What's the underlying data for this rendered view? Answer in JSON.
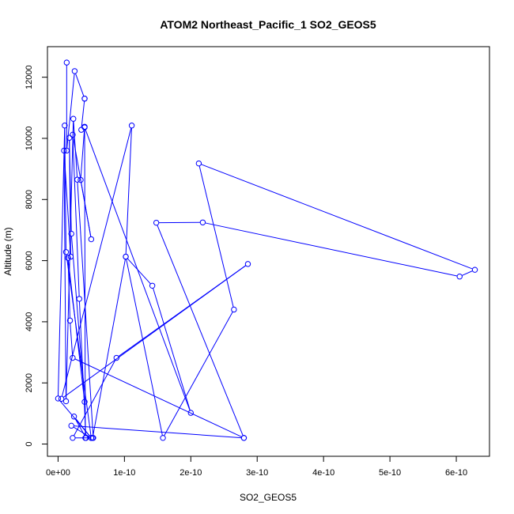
{
  "chart_data": {
    "type": "line",
    "title": "ATOM2 Northeast_Pacific_1 SO2_GEOS5",
    "xlabel": "SO2_GEOS5",
    "ylabel": "Altitude (m)",
    "xlim": [
      -1.6e-11,
      6.5e-10
    ],
    "ylim": [
      -400,
      13000
    ],
    "xticks": [
      0,
      1e-10,
      2e-10,
      3e-10,
      4e-10,
      5e-10,
      6e-10
    ],
    "xtick_labels": [
      "0e+00",
      "1e-10",
      "2e-10",
      "3e-10",
      "4e-10",
      "5e-10",
      "6e-10"
    ],
    "yticks": [
      0,
      2000,
      4000,
      6000,
      8000,
      10000,
      12000
    ],
    "ytick_labels": [
      "0",
      "2000",
      "4000",
      "6000",
      "8000",
      "10000",
      "12000"
    ],
    "grid": false,
    "legend": "none",
    "series_color": "#0000ff",
    "marker": "open-circle",
    "x": [
      1.3e-11,
      1.3e-11,
      2.5e-11,
      4e-11,
      4e-11,
      3.5e-11,
      4e-11,
      3.4e-11,
      5e-11,
      2.2e-11,
      3.2e-11,
      4.2e-11,
      2.4e-11,
      5e-11,
      1.2e-11,
      1e-11,
      0.0,
      5e-11,
      2e-11,
      2.8e-10,
      2.2e-11,
      1.8e-11,
      1.5e-11,
      4e-11,
      2e-11,
      1.7e-11,
      1.9e-11,
      9e-12,
      1.2e-11,
      2.3e-11,
      2.9e-11,
      5.3e-11,
      4.1e-11,
      4e-11,
      2e-10,
      1.42e-10,
      1.02e-10,
      5.2e-11,
      2.2e-11,
      8.8e-11,
      2.86e-10,
      5e-12,
      1.11e-10,
      1.02e-10,
      1.58e-10,
      2.65e-10,
      2.12e-10,
      6.28e-10,
      6.05e-10,
      2.18e-10,
      1.48e-10,
      2.8e-10
    ],
    "y": [
      12480,
      9600,
      12200,
      11300,
      11300,
      10280,
      10380,
      8640,
      6700,
      10120,
      4750,
      200,
      900,
      200,
      6280,
      10420,
      1490,
      200,
      600,
      200,
      2820,
      4040,
      6090,
      1380,
      6880,
      10020,
      6130,
      9600,
      1400,
      10640,
      8650,
      200,
      200,
      10360,
      1020,
      5180,
      6130,
      200,
      200,
      2820,
      5890,
      1480,
      10420,
      6130,
      200,
      4400,
      9180,
      5700,
      5480,
      7250,
      7240,
      200
    ]
  }
}
